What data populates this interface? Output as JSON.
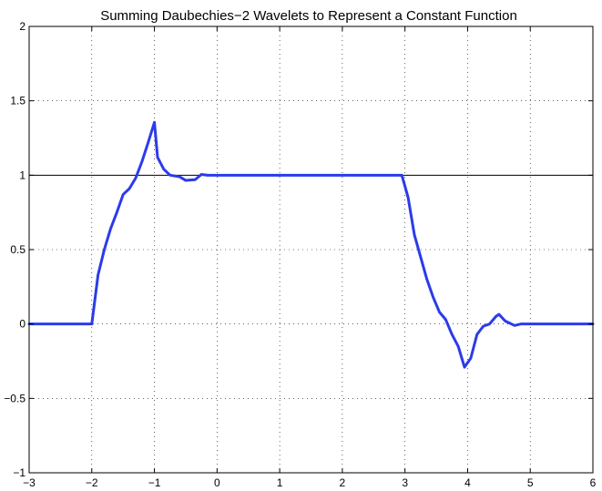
{
  "chart_data": {
    "type": "line",
    "title": "Summing Daubechies−2 Wavelets to Represent a Constant Function",
    "xlabel": "",
    "ylabel": "",
    "xlim": [
      -3,
      6
    ],
    "ylim": [
      -1,
      2
    ],
    "grid": true,
    "x_ticks": [
      -3,
      -2,
      -1,
      0,
      1,
      2,
      3,
      4,
      5,
      6
    ],
    "x_tick_labels": [
      "−3",
      "−2",
      "−1",
      "0",
      "1",
      "2",
      "3",
      "4",
      "5",
      "6"
    ],
    "y_ticks": [
      -1,
      -0.5,
      0,
      0.5,
      1,
      1.5,
      2
    ],
    "y_tick_labels": [
      "−1",
      "−0.5",
      "0",
      "0.5",
      "1",
      "1.5",
      "2"
    ],
    "reference_line": {
      "y": 1,
      "color": "#000000"
    },
    "series": [
      {
        "color": "#2b3bea",
        "x": [
          -3,
          -2.0,
          -1.9,
          -1.8,
          -1.7,
          -1.6,
          -1.5,
          -1.4,
          -1.3,
          -1.2,
          -1.1,
          -1.0,
          -0.95,
          -0.85,
          -0.75,
          -0.6,
          -0.5,
          -0.35,
          -0.25,
          -0.15,
          0.0,
          1.0,
          2.0,
          2.95,
          3.05,
          3.15,
          3.25,
          3.35,
          3.45,
          3.55,
          3.65,
          3.75,
          3.85,
          3.95,
          4.05,
          4.15,
          4.25,
          4.35,
          4.45,
          4.5,
          4.6,
          4.75,
          4.85,
          5.0,
          6.0
        ],
        "y": [
          0,
          0,
          0.33,
          0.5,
          0.64,
          0.75,
          0.87,
          0.91,
          0.98,
          1.09,
          1.22,
          1.355,
          1.12,
          1.04,
          1.0,
          0.99,
          0.965,
          0.97,
          1.005,
          1.0,
          1.0,
          1.0,
          1.0,
          1.0,
          0.85,
          0.6,
          0.45,
          0.3,
          0.18,
          0.08,
          0.03,
          -0.07,
          -0.15,
          -0.29,
          -0.23,
          -0.07,
          -0.015,
          0.0,
          0.05,
          0.065,
          0.02,
          -0.01,
          0.0,
          0.0,
          0.0
        ]
      }
    ]
  }
}
